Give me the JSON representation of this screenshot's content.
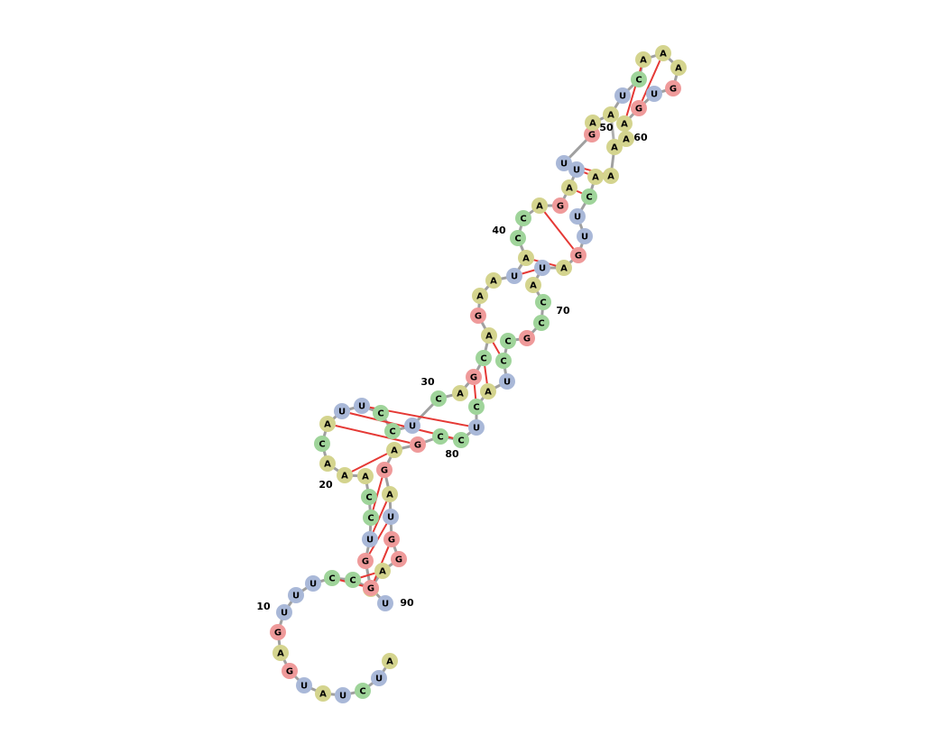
{
  "sequence": "AUCUAUGAGUUUCCAGUCCAAACAUUCCUCAGCAGAAUACCAGAUUGAAUCAAAGUGAAAAACUUGAUACCGCCUACUCCGAGAUGGAGU",
  "numbering": {
    "1": "",
    "10": "10",
    "20": "20",
    "30": "30",
    "40": "40",
    "50": "50",
    "60": "60",
    "70": "70",
    "80": "80",
    "90": "90"
  },
  "colors": {
    "A": "#d4d48e",
    "U": "#a9b8d8",
    "G": "#ef9a9a",
    "C": "#9fd49a",
    "backbone": "#a0a0a0",
    "pair_bond": "#e53935",
    "pseudoknot": "#b0b0b0"
  },
  "pairs": [
    [
      13,
      89
    ],
    [
      14,
      88
    ],
    [
      15,
      86
    ],
    [
      16,
      85
    ],
    [
      17,
      84
    ],
    [
      18,
      83
    ],
    [
      21,
      82
    ],
    [
      24,
      81
    ],
    [
      25,
      79
    ],
    [
      26,
      78
    ],
    [
      32,
      77
    ],
    [
      33,
      76
    ],
    [
      34,
      74
    ],
    [
      38,
      68
    ],
    [
      39,
      67
    ],
    [
      42,
      66
    ],
    [
      44,
      63
    ],
    [
      45,
      62
    ],
    [
      46,
      61
    ],
    [
      52,
      58
    ],
    [
      53,
      57
    ]
  ],
  "pseudoknot_pairs": [
    [
      49,
      60
    ]
  ]
}
